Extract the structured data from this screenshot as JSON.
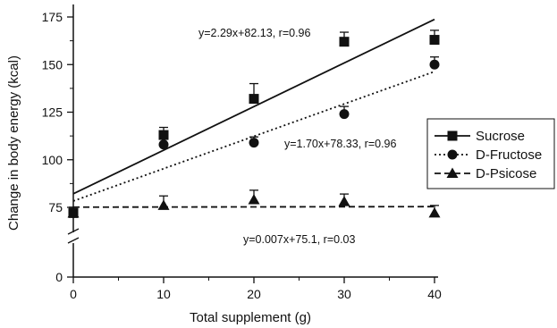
{
  "chart_data": {
    "type": "scatter",
    "title": "",
    "xlabel": "Total supplement (g)",
    "ylabel": "Change in body energy (kcal)",
    "xlim": [
      0,
      40
    ],
    "ylim_display": [
      0,
      175
    ],
    "axis_break": true,
    "x_ticks": [
      0,
      10,
      20,
      30,
      40
    ],
    "y_ticks": [
      0,
      75,
      100,
      125,
      150,
      175
    ],
    "grid": false,
    "legend_position": "right",
    "series": [
      {
        "name": "Sucrose",
        "marker": "square",
        "line_style": "solid",
        "x": [
          0,
          10,
          20,
          30,
          40
        ],
        "y": [
          72,
          113,
          132,
          162,
          163
        ],
        "error": [
          3,
          4,
          8,
          5,
          5
        ],
        "fit": {
          "slope": 2.29,
          "intercept": 82.13
        },
        "equation": "y=2.29x+82.13, r=0.96"
      },
      {
        "name": "D-Fructose",
        "marker": "circle",
        "line_style": "dotted",
        "x": [
          0,
          10,
          20,
          30,
          40
        ],
        "y": [
          72,
          108,
          109,
          124,
          150
        ],
        "error": [
          3,
          3,
          3,
          4,
          4
        ],
        "fit": {
          "slope": 1.7,
          "intercept": 78.33
        },
        "equation": "y=1.70x+78.33, r=0.96"
      },
      {
        "name": "D-Psicose",
        "marker": "triangle",
        "line_style": "dashed",
        "x": [
          0,
          10,
          20,
          30,
          40
        ],
        "y": [
          72,
          76,
          79,
          78,
          72
        ],
        "error": [
          3,
          5,
          5,
          4,
          4
        ],
        "fit": {
          "slope": 0.007,
          "intercept": 75.1
        },
        "equation": "y=0.007x+75.1, r=0.03"
      }
    ]
  },
  "colors": {
    "ink": "#111111",
    "background": "#ffffff"
  }
}
